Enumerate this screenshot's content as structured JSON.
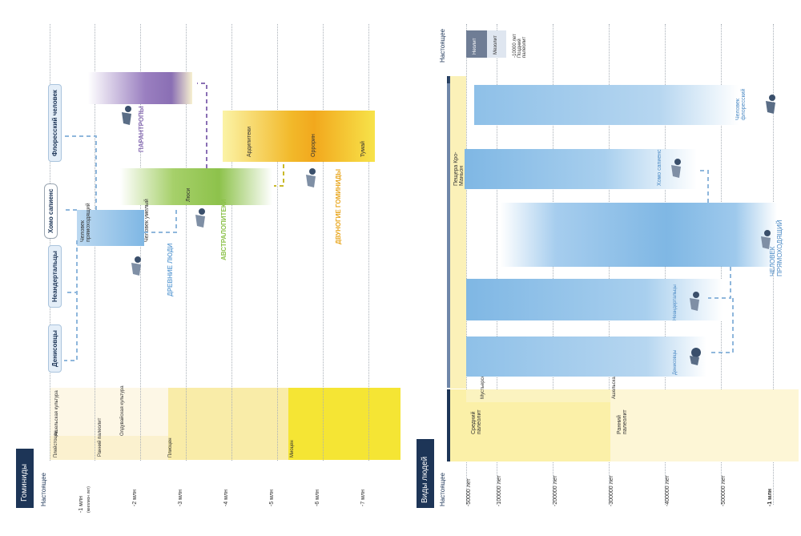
{
  "left_panel": {
    "title": "Гоминиды",
    "present": "Настоящее",
    "axis": [
      {
        "label": "-1 млн",
        "note": "(миллион лет)"
      },
      {
        "label": "-2 млн"
      },
      {
        "label": "-3 млн"
      },
      {
        "label": "-4 млн"
      },
      {
        "label": "-5 млн"
      },
      {
        "label": "-6 млн"
      },
      {
        "label": "-7 млн"
      }
    ],
    "epochs": [
      "Плейстоцен",
      "Плиоцен",
      "Миоцен"
    ],
    "cultures": [
      "Ранний палеолит",
      "Ашельская культура",
      "Олдувайская культура"
    ],
    "species_tags": [
      "Денисовцы",
      "Неандертальцы",
      "Хомо сапиенс",
      "Флоресский человек"
    ],
    "labels": {
      "erectus": "Человек прямоходящий",
      "habilis": "Человек умелый",
      "lucy": "Люси",
      "ardipithecus": "Ардипитеки",
      "orrorin": "Оррорин",
      "toumai": "Тумай",
      "paranthropus": "ПАРАНТРОПЫ",
      "ancient_people": "ДРЕВНИЕ ЛЮДИ",
      "australopithecus": "АВСТРАЛОПИТЕКИ",
      "bipedal": "ДВУНОГИЕ ГОМИНИДЫ"
    }
  },
  "right_panel": {
    "title": "Виды людей",
    "present": "Настоящее",
    "axis": [
      "-50000 лет",
      "-100000 лет",
      "-200000 лет",
      "-300000 лет",
      "-400000 лет",
      "-500000 лет",
      "-1 млн"
    ],
    "legend": {
      "neolithic": "Неолит",
      "mesolithic": "Мезолит",
      "late_paleo": "-10000 лет Поздний палеолит"
    },
    "cultures": [
      "Мустьерская культура",
      "Ашельская культура"
    ],
    "periods": [
      "Средний палеолит",
      "Ранний палеолит"
    ],
    "labels": {
      "cave": "Пещера Кро-Маньон",
      "flores": "Человек флоресский",
      "sapiens": "Хомо сапиенс",
      "erectus": "ЧЕЛОВЕК ПРЯМОХОДЯЩИЙ",
      "neanderthal": "Неандертальцы",
      "denisovan": "Денисовцы"
    }
  },
  "colors": {
    "navy": "#1d3557",
    "blue": "#7fb7e4",
    "purple": "#8a6fb4",
    "green": "#8dc24b",
    "orange": "#f2a81d",
    "yellow": "#f5e534",
    "dash_blue": "#8fb7dc"
  }
}
